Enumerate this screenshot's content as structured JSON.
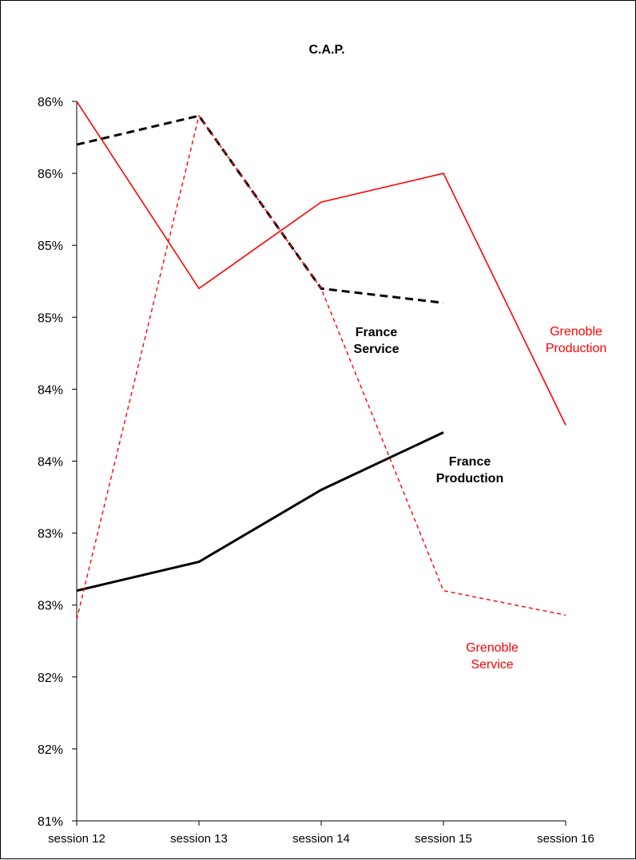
{
  "chart_data": {
    "type": "line",
    "title": "C.A.P.",
    "xlabel": "",
    "ylabel": "",
    "x": [
      "session 12",
      "session 13",
      "session 14",
      "session 15",
      "session 16"
    ],
    "y_tick_labels": [
      "81%",
      "82%",
      "82%",
      "83%",
      "83%",
      "84%",
      "84%",
      "85%",
      "85%",
      "86%",
      "86%"
    ],
    "ylim": [
      81.0,
      86.0
    ],
    "grid": false,
    "series": [
      {
        "name": "France Service",
        "values": [
          85.7,
          85.9,
          84.7,
          84.6,
          null
        ],
        "color": "#000000",
        "line_style": "dashed",
        "label_lines": [
          "France",
          "Service"
        ]
      },
      {
        "name": "France Production",
        "values": [
          82.6,
          82.8,
          83.3,
          83.7,
          null
        ],
        "color": "#000000",
        "line_style": "solid",
        "label_lines": [
          "France",
          "Production"
        ]
      },
      {
        "name": "Grenoble Production",
        "values": [
          86.0,
          84.7,
          85.3,
          85.5,
          83.75
        ],
        "color": "#ff0000",
        "line_style": "solid",
        "label_lines": [
          "Grenoble",
          "Production"
        ]
      },
      {
        "name": "Grenoble Service",
        "values": [
          82.4,
          85.9,
          84.7,
          82.6,
          82.43
        ],
        "color": "#ff0000",
        "line_style": "dashed",
        "label_lines": [
          "Grenoble",
          "Service"
        ]
      }
    ]
  }
}
